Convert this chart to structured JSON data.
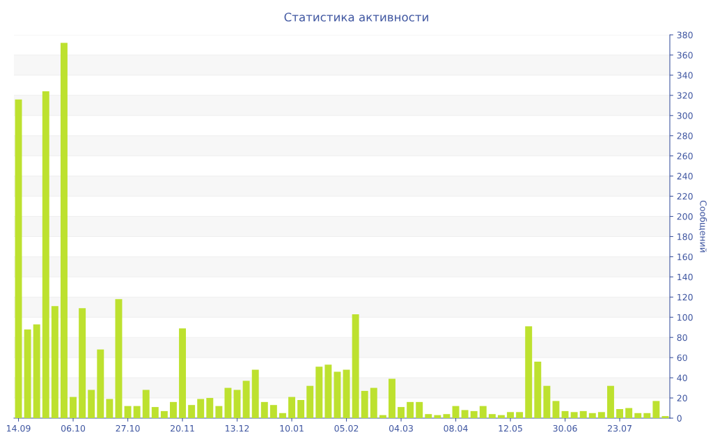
{
  "chart_data": {
    "type": "bar",
    "title": "Статистика активности",
    "ylabel": "Сообщений",
    "categories": [
      "14.09",
      null,
      null,
      null,
      null,
      null,
      "06.10",
      null,
      null,
      null,
      null,
      null,
      "27.10",
      null,
      null,
      null,
      null,
      null,
      "20.11",
      null,
      null,
      null,
      null,
      null,
      "13.12",
      null,
      null,
      null,
      null,
      null,
      "10.01",
      null,
      null,
      null,
      null,
      null,
      "05.02",
      null,
      null,
      null,
      null,
      null,
      "04.03",
      null,
      null,
      null,
      null,
      null,
      "08.04",
      null,
      null,
      null,
      null,
      null,
      "12.05",
      null,
      null,
      null,
      null,
      null,
      "30.06",
      null,
      null,
      null,
      null,
      null,
      "23.07",
      null,
      null,
      null,
      null,
      null
    ],
    "values": [
      316,
      88,
      93,
      324,
      111,
      372,
      21,
      109,
      28,
      68,
      19,
      118,
      12,
      12,
      28,
      11,
      7,
      16,
      89,
      13,
      19,
      20,
      12,
      30,
      28,
      37,
      48,
      16,
      13,
      5,
      21,
      18,
      32,
      51,
      53,
      46,
      48,
      103,
      27,
      30,
      3,
      39,
      11,
      16,
      16,
      4,
      3,
      4,
      12,
      8,
      7,
      12,
      4,
      3,
      6,
      6,
      91,
      56,
      32,
      17,
      7,
      6,
      7,
      5,
      6,
      32,
      9,
      10,
      5,
      5,
      17,
      2
    ],
    "color": "#bde12f",
    "ylim": [
      0,
      380
    ],
    "yticks": [
      0,
      20,
      40,
      60,
      80,
      100,
      120,
      140,
      160,
      180,
      200,
      220,
      240,
      260,
      280,
      300,
      320,
      340,
      360,
      380
    ],
    "grid": "y",
    "legend": false
  }
}
